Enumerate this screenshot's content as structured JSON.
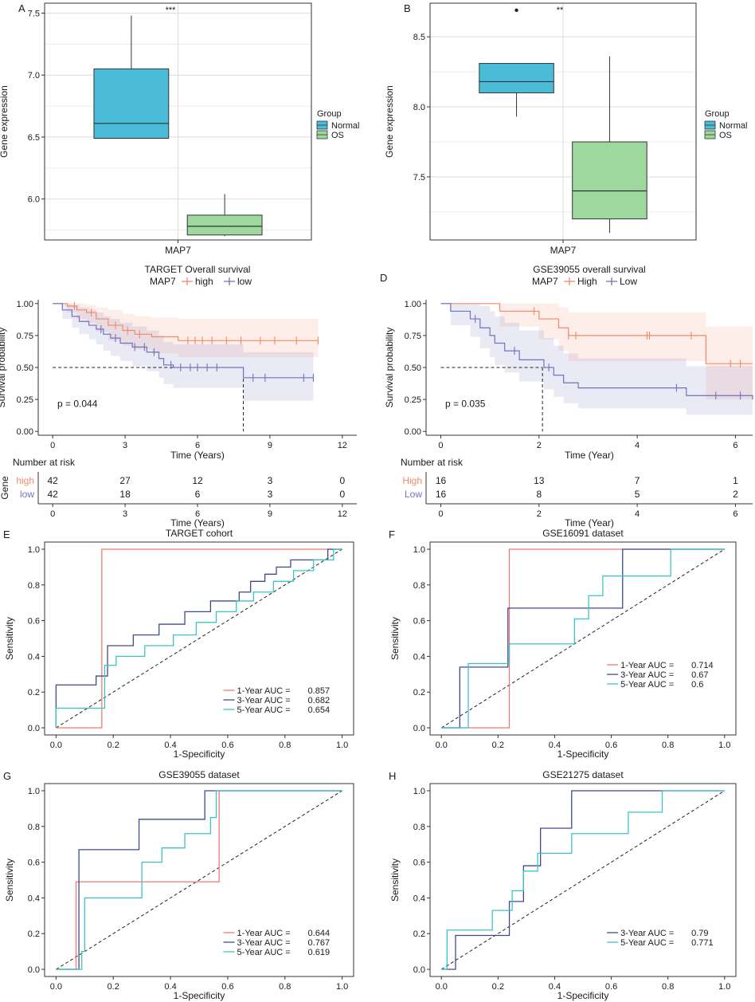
{
  "chart_data": [
    {
      "panel": "A",
      "type": "box",
      "ylabel": "Gene expression",
      "xlabel": "MAP7",
      "ylim": [
        5.67,
        7.58
      ],
      "yticks": [
        6.0,
        6.5,
        7.0,
        7.5
      ],
      "significance": "***",
      "legend": {
        "title": "Group",
        "entries": [
          "Normal",
          "OS"
        ],
        "position": "right"
      },
      "groups": [
        {
          "name": "Normal",
          "color": "#4bbcd8",
          "min": 6.49,
          "q1": 6.49,
          "median": 6.61,
          "q3": 7.05,
          "max": 7.48,
          "outliers": []
        },
        {
          "name": "OS",
          "color": "#9ed89e",
          "min": 5.7,
          "q1": 5.71,
          "median": 5.78,
          "q3": 5.87,
          "max": 6.04,
          "outliers": []
        }
      ]
    },
    {
      "panel": "B",
      "type": "box",
      "ylabel": "Gene expression",
      "xlabel": "MAP7",
      "ylim": [
        7.05,
        8.74
      ],
      "yticks": [
        7.5,
        8.0,
        8.5
      ],
      "significance": "**",
      "legend": {
        "title": "Group",
        "entries": [
          "Normal",
          "OS"
        ],
        "position": "right"
      },
      "groups": [
        {
          "name": "Normal",
          "color": "#4bbcd8",
          "min": 7.93,
          "q1": 8.1,
          "median": 8.18,
          "q3": 8.31,
          "max": 8.31,
          "outliers": [
            8.69
          ]
        },
        {
          "name": "OS",
          "color": "#9ed89e",
          "min": 7.1,
          "q1": 7.2,
          "median": 7.4,
          "q3": 7.75,
          "max": 8.36,
          "outliers": []
        }
      ]
    },
    {
      "panel": "C",
      "type": "line",
      "title": "TARGET Overall survival",
      "legend_title": "MAP7",
      "xlabel": "Time (Years)",
      "ylabel": "Survival probability",
      "xlim": [
        -0.6,
        12.6
      ],
      "ylim": [
        -0.03,
        1.03
      ],
      "xticks": [
        0,
        3,
        6,
        9,
        12
      ],
      "yticks": [
        0.0,
        0.25,
        0.5,
        0.75,
        1.0
      ],
      "p_value": "p = 0.044",
      "median_lines": [
        {
          "x0": 0,
          "x1": 7.9,
          "y": 0.5
        }
      ],
      "series": [
        {
          "name": "high",
          "color": "#f08a6c",
          "x": [
            0,
            0.6,
            1.0,
            1.4,
            1.8,
            2.3,
            2.9,
            3.4,
            4.1,
            5.2,
            11.0
          ],
          "y": [
            1.0,
            0.98,
            0.95,
            0.93,
            0.88,
            0.83,
            0.79,
            0.76,
            0.74,
            0.71,
            0.71
          ],
          "ci_upper": [
            1.0,
            1.0,
            1.0,
            0.99,
            0.97,
            0.95,
            0.92,
            0.9,
            0.89,
            0.88,
            0.88
          ],
          "ci_lower": [
            1.0,
            0.93,
            0.88,
            0.85,
            0.78,
            0.71,
            0.67,
            0.64,
            0.61,
            0.58,
            0.58
          ],
          "censor": [
            0.9,
            1.6,
            2.6,
            3.1,
            3.6,
            5.6,
            5.9,
            6.2,
            6.6,
            7.2,
            7.8,
            8.6,
            9.2,
            10.1,
            11.0
          ]
        },
        {
          "name": "low",
          "color": "#7372bf",
          "x": [
            0,
            0.4,
            0.8,
            1.1,
            1.5,
            1.8,
            2.1,
            2.4,
            2.8,
            3.3,
            3.9,
            4.4,
            4.6,
            5.0,
            7.9,
            10.8
          ],
          "y": [
            1.0,
            0.95,
            0.9,
            0.86,
            0.83,
            0.8,
            0.76,
            0.73,
            0.69,
            0.66,
            0.62,
            0.57,
            0.52,
            0.5,
            0.42,
            0.42
          ],
          "ci_upper": [
            1.0,
            1.0,
            0.99,
            0.97,
            0.95,
            0.93,
            0.9,
            0.88,
            0.85,
            0.82,
            0.79,
            0.75,
            0.7,
            0.68,
            0.62,
            0.62
          ],
          "ci_lower": [
            1.0,
            0.88,
            0.81,
            0.76,
            0.72,
            0.68,
            0.63,
            0.59,
            0.55,
            0.51,
            0.47,
            0.42,
            0.37,
            0.34,
            0.24,
            0.24
          ],
          "censor": [
            2.0,
            2.6,
            3.4,
            3.8,
            4.2,
            4.9,
            5.3,
            5.7,
            6.0,
            6.4,
            6.8,
            8.3,
            8.8,
            10.4,
            10.8
          ]
        }
      ],
      "risk_table": {
        "title": "Number at risk",
        "axis_label": "Gene",
        "times": [
          0,
          3,
          6,
          9,
          12
        ],
        "rows": [
          {
            "name": "high",
            "color": "#f08a6c",
            "values": [
              42,
              27,
              12,
              3,
              0
            ]
          },
          {
            "name": "low",
            "color": "#7372bf",
            "values": [
              42,
              18,
              6,
              3,
              0
            ]
          }
        ],
        "xlabel": "Time (Years)"
      }
    },
    {
      "panel": "D",
      "type": "line",
      "title": "GSE39055 overall survival",
      "legend_title": "MAP7",
      "xlabel": "Time (Year)",
      "ylabel": "Survival probability",
      "xlim": [
        -0.3,
        6.35
      ],
      "ylim": [
        -0.03,
        1.03
      ],
      "xticks": [
        0,
        2,
        4,
        6
      ],
      "yticks": [
        0.0,
        0.25,
        0.5,
        0.75,
        1.0
      ],
      "p_value": "p = 0.035",
      "median_lines": [
        {
          "x0": 0,
          "x1": 2.07,
          "y": 0.5
        }
      ],
      "series": [
        {
          "name": "High",
          "color": "#f08a6c",
          "x": [
            0,
            1.2,
            2.0,
            2.4,
            2.6,
            5.4,
            6.35
          ],
          "y": [
            1.0,
            0.94,
            0.88,
            0.81,
            0.75,
            0.53,
            0.53
          ],
          "ci_upper": [
            1.0,
            1.0,
            1.0,
            0.97,
            0.93,
            0.82,
            0.82
          ],
          "ci_lower": [
            1.0,
            0.82,
            0.72,
            0.63,
            0.55,
            0.25,
            0.25
          ],
          "censor": [
            1.9,
            2.6,
            2.75,
            4.2,
            4.25,
            5.1,
            5.9,
            6.1
          ]
        },
        {
          "name": "Low",
          "color": "#7372bf",
          "x": [
            0,
            0.2,
            0.6,
            0.8,
            1.0,
            1.1,
            1.3,
            1.6,
            2.1,
            2.3,
            2.5,
            2.8,
            5.0,
            6.35
          ],
          "y": [
            1.0,
            0.94,
            0.88,
            0.81,
            0.75,
            0.69,
            0.63,
            0.56,
            0.5,
            0.44,
            0.38,
            0.34,
            0.28,
            0.25
          ],
          "ci_upper": [
            1.0,
            1.0,
            1.0,
            0.98,
            0.94,
            0.9,
            0.85,
            0.79,
            0.73,
            0.67,
            0.61,
            0.57,
            0.51,
            0.48
          ],
          "ci_lower": [
            1.0,
            0.83,
            0.74,
            0.65,
            0.58,
            0.52,
            0.46,
            0.39,
            0.33,
            0.27,
            0.22,
            0.18,
            0.13,
            0.1
          ],
          "censor": [
            0.7,
            1.5,
            2.2,
            4.8,
            5.6,
            6.1
          ]
        }
      ],
      "risk_table": {
        "title": "Number at risk",
        "axis_label": "",
        "times": [
          0,
          2,
          4,
          6
        ],
        "rows": [
          {
            "name": "High",
            "color": "#f08a6c",
            "values": [
              16,
              13,
              7,
              1
            ]
          },
          {
            "name": "Low",
            "color": "#7372bf",
            "values": [
              16,
              8,
              5,
              2
            ]
          }
        ],
        "xlabel": "Time (Year)"
      }
    },
    {
      "panel": "E",
      "type": "line",
      "title": "TARGET cohort",
      "xlabel": "1-Specificity",
      "ylabel": "Sensitivity",
      "xlim": [
        -0.04,
        1.04
      ],
      "ylim": [
        -0.04,
        1.04
      ],
      "xticks": [
        0.0,
        0.2,
        0.4,
        0.6,
        0.8,
        1.0
      ],
      "yticks": [
        0.0,
        0.2,
        0.4,
        0.6,
        0.8,
        1.0
      ],
      "series": [
        {
          "name": "1-Year AUC =",
          "auc": "0.857",
          "color": "#f07a72",
          "x": [
            0,
            0.16,
            0.16,
            1.0
          ],
          "y": [
            0,
            0,
            1.0,
            1.0
          ]
        },
        {
          "name": "3-Year AUC =",
          "auc": "0.682",
          "color": "#414a8c",
          "x": [
            0,
            0,
            0.14,
            0.14,
            0.18,
            0.18,
            0.27,
            0.27,
            0.36,
            0.36,
            0.45,
            0.45,
            0.54,
            0.54,
            0.64,
            0.64,
            0.68,
            0.68,
            0.73,
            0.73,
            0.77,
            0.77,
            0.82,
            0.82,
            0.86,
            0.86,
            0.95,
            0.95,
            1.0
          ],
          "y": [
            0,
            0.24,
            0.24,
            0.29,
            0.29,
            0.46,
            0.46,
            0.52,
            0.52,
            0.58,
            0.58,
            0.65,
            0.65,
            0.71,
            0.71,
            0.76,
            0.76,
            0.82,
            0.82,
            0.86,
            0.86,
            0.9,
            0.9,
            0.94,
            0.94,
            0.94,
            0.94,
            1.0,
            1.0
          ]
        },
        {
          "name": "5-Year AUC =",
          "auc": "0.654",
          "color": "#3cc4c4",
          "x": [
            0,
            0,
            0.17,
            0.17,
            0.21,
            0.21,
            0.31,
            0.31,
            0.41,
            0.41,
            0.49,
            0.49,
            0.56,
            0.56,
            0.63,
            0.63,
            0.69,
            0.69,
            0.76,
            0.76,
            0.83,
            0.83,
            0.9,
            0.9,
            0.97,
            0.97,
            1.0
          ],
          "y": [
            0,
            0.11,
            0.11,
            0.35,
            0.35,
            0.4,
            0.4,
            0.46,
            0.46,
            0.52,
            0.52,
            0.59,
            0.59,
            0.65,
            0.65,
            0.71,
            0.71,
            0.76,
            0.76,
            0.82,
            0.82,
            0.88,
            0.88,
            0.94,
            0.94,
            1.0,
            1.0
          ]
        }
      ]
    },
    {
      "panel": "F",
      "type": "line",
      "title": "GSE16091 dataset",
      "xlabel": "1-Specificity",
      "ylabel": "Sensitivity",
      "xlim": [
        -0.04,
        1.04
      ],
      "ylim": [
        -0.04,
        1.04
      ],
      "xticks": [
        0.0,
        0.2,
        0.4,
        0.6,
        0.8,
        1.0
      ],
      "yticks": [
        0.0,
        0.2,
        0.4,
        0.6,
        0.8,
        1.0
      ],
      "series": [
        {
          "name": "1-Year AUC =",
          "auc": "0.714",
          "color": "#f07a72",
          "x": [
            0,
            0.24,
            0.24,
            1.0
          ],
          "y": [
            0,
            0,
            1.0,
            1.0
          ]
        },
        {
          "name": "3-Year AUC =",
          "auc": "0.67",
          "color": "#414a8c",
          "x": [
            0,
            0.065,
            0.065,
            0.235,
            0.235,
            0.64,
            0.64,
            1.0
          ],
          "y": [
            0,
            0,
            0.34,
            0.34,
            0.67,
            0.67,
            1.0,
            1.0
          ]
        },
        {
          "name": "5-Year AUC =",
          "auc": "0.6",
          "color": "#3cc4c4",
          "x": [
            0,
            0.095,
            0.095,
            0.24,
            0.24,
            0.47,
            0.47,
            0.52,
            0.52,
            0.57,
            0.57,
            0.81,
            0.81,
            1.0
          ],
          "y": [
            0,
            0,
            0.36,
            0.36,
            0.47,
            0.47,
            0.61,
            0.61,
            0.74,
            0.74,
            0.85,
            0.85,
            1.0,
            1.0
          ]
        }
      ]
    },
    {
      "panel": "G",
      "type": "line",
      "title": "GSE39055 dataset",
      "xlabel": "1-Specificity",
      "ylabel": "Sensitivity",
      "xlim": [
        -0.04,
        1.04
      ],
      "ylim": [
        -0.04,
        1.04
      ],
      "xticks": [
        0.0,
        0.2,
        0.4,
        0.6,
        0.8,
        1.0
      ],
      "yticks": [
        0.0,
        0.2,
        0.4,
        0.6,
        0.8,
        1.0
      ],
      "series": [
        {
          "name": "1-Year AUC =",
          "auc": "0.644",
          "color": "#f07a72",
          "x": [
            0,
            0.07,
            0.07,
            0.57,
            0.57,
            1.0
          ],
          "y": [
            0,
            0,
            0.49,
            0.49,
            1.0,
            1.0
          ]
        },
        {
          "name": "3-Year AUC =",
          "auc": "0.767",
          "color": "#414a8c",
          "x": [
            0,
            0.08,
            0.08,
            0.29,
            0.29,
            0.52,
            0.52,
            1.0
          ],
          "y": [
            0,
            0,
            0.67,
            0.67,
            0.84,
            0.84,
            1.0,
            1.0
          ]
        },
        {
          "name": "5-Year AUC =",
          "auc": "0.619",
          "color": "#3cc4c4",
          "x": [
            0,
            0.09,
            0.09,
            0.1,
            0.1,
            0.3,
            0.3,
            0.37,
            0.37,
            0.45,
            0.45,
            0.54,
            0.54,
            0.56,
            0.56,
            1.0
          ],
          "y": [
            0,
            0,
            0.1,
            0.1,
            0.4,
            0.4,
            0.6,
            0.6,
            0.68,
            0.68,
            0.76,
            0.76,
            0.85,
            0.85,
            1.0,
            1.0
          ]
        }
      ]
    },
    {
      "panel": "H",
      "type": "line",
      "title": "GSE21275 dataset",
      "xlabel": "1-Specificity",
      "ylabel": "Sensitivity",
      "xlim": [
        -0.04,
        1.04
      ],
      "ylim": [
        -0.04,
        1.04
      ],
      "xticks": [
        0.0,
        0.2,
        0.4,
        0.6,
        0.8,
        1.0
      ],
      "yticks": [
        0.0,
        0.2,
        0.4,
        0.6,
        0.8,
        1.0
      ],
      "series": [
        {
          "name": "3-Year AUC =",
          "auc": "0.79",
          "color": "#414a8c",
          "x": [
            0,
            0.05,
            0.05,
            0.24,
            0.24,
            0.29,
            0.29,
            0.35,
            0.35,
            0.46,
            0.46,
            0.77,
            0.77,
            1.0
          ],
          "y": [
            0,
            0,
            0.19,
            0.19,
            0.38,
            0.38,
            0.58,
            0.58,
            0.79,
            0.79,
            1.0,
            1.0,
            1.0,
            1.0
          ]
        },
        {
          "name": "5-Year AUC =",
          "auc": "0.771",
          "color": "#3cc4c4",
          "x": [
            0,
            0.02,
            0.02,
            0.18,
            0.18,
            0.25,
            0.25,
            0.29,
            0.29,
            0.34,
            0.34,
            0.46,
            0.46,
            0.54,
            0.54,
            0.66,
            0.66,
            0.78,
            0.78,
            1.0
          ],
          "y": [
            0,
            0,
            0.22,
            0.22,
            0.33,
            0.33,
            0.44,
            0.44,
            0.55,
            0.55,
            0.65,
            0.65,
            0.76,
            0.76,
            0.76,
            0.76,
            0.88,
            0.88,
            1.0,
            1.0
          ]
        }
      ]
    }
  ]
}
